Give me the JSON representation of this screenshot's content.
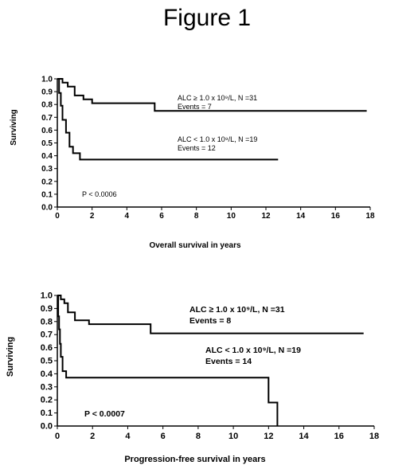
{
  "figure_title": "Figure 1",
  "chart_data": [
    {
      "type": "line",
      "step": true,
      "title": "",
      "xlabel": "Overall survival in years",
      "ylabel": "Surviving",
      "xlim": [
        0,
        18
      ],
      "ylim": [
        0,
        1.0
      ],
      "x_ticks": [
        "0",
        "2",
        "4",
        "6",
        "8",
        "10",
        "12",
        "14",
        "16",
        "18"
      ],
      "y_ticks": [
        "0.0",
        "0.1",
        "0.2",
        "0.3",
        "0.4",
        "0.5",
        "0.6",
        "0.7",
        "0.8",
        "0.9",
        "1.0"
      ],
      "series": [
        {
          "x": [
            0,
            0.3,
            0.6,
            1.0,
            1.5,
            2.0,
            5.6,
            17.8
          ],
          "y": [
            1.0,
            0.97,
            0.94,
            0.87,
            0.84,
            0.81,
            0.75,
            0.75
          ]
        },
        {
          "x": [
            0,
            0.1,
            0.2,
            0.3,
            0.5,
            0.7,
            0.9,
            1.3,
            12.7
          ],
          "y": [
            1.0,
            0.89,
            0.79,
            0.68,
            0.58,
            0.47,
            0.42,
            0.37,
            0.37
          ]
        }
      ],
      "annotations": [
        {
          "line1": "ALC ≥ 1.0 x 10⁹/L, N =31",
          "line2": "Events = 7"
        },
        {
          "line1": "ALC < 1.0 x 10⁹/L, N =19",
          "line2": "Events = 12"
        }
      ],
      "pvalue": "P < 0.0006"
    },
    {
      "type": "line",
      "step": true,
      "title": "",
      "xlabel": "Progression-free survival in years",
      "ylabel": "Surviving",
      "xlim": [
        0,
        18
      ],
      "ylim": [
        0,
        1.0
      ],
      "x_ticks": [
        "0",
        "2",
        "4",
        "6",
        "8",
        "10",
        "12",
        "14",
        "16",
        "18"
      ],
      "y_ticks": [
        "0.0",
        "0.1",
        "0.2",
        "0.3",
        "0.4",
        "0.5",
        "0.6",
        "0.7",
        "0.8",
        "0.9",
        "1.0"
      ],
      "series": [
        {
          "x": [
            0,
            0.2,
            0.4,
            0.6,
            1.0,
            1.8,
            5.3,
            17.4
          ],
          "y": [
            1.0,
            0.97,
            0.94,
            0.87,
            0.81,
            0.78,
            0.71,
            0.71
          ]
        },
        {
          "x": [
            0,
            0.05,
            0.1,
            0.15,
            0.2,
            0.3,
            0.5,
            12.0,
            12.5
          ],
          "y": [
            1.0,
            0.84,
            0.74,
            0.63,
            0.53,
            0.42,
            0.37,
            0.18,
            0.0
          ]
        }
      ],
      "annotations": [
        {
          "line1": "ALC ≥ 1.0 x 10⁹/L, N =31",
          "line2": "Events = 8"
        },
        {
          "line1": "ALC < 1.0 x 10⁹/L, N =19",
          "line2": "Events = 14"
        }
      ],
      "pvalue": "P < 0.0007"
    }
  ]
}
